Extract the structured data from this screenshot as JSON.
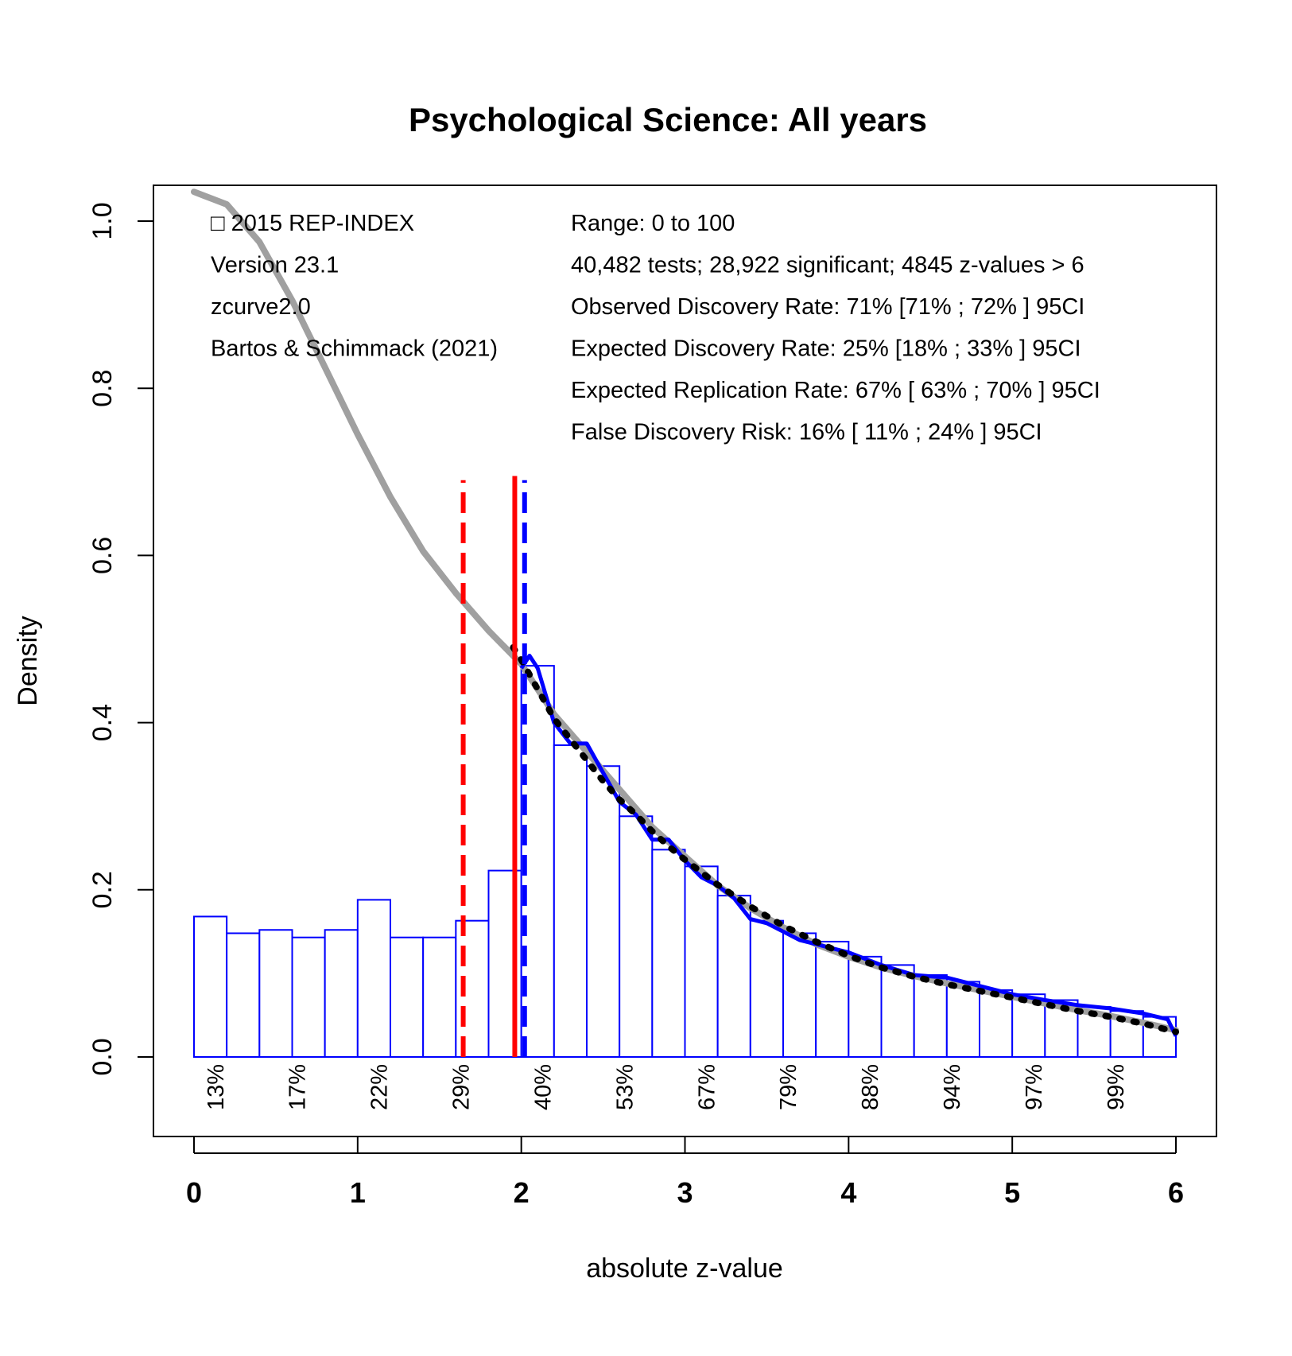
{
  "colors": {
    "bar_stroke": "#0000ff",
    "model_curve": "#a0a0a0",
    "observed_curve": "#0000ff",
    "fit_dots": "#000000",
    "red_line": "#ff0000",
    "blue_line": "#0000ff"
  },
  "chart_data": {
    "type": "bar",
    "title": "Psychological Science: All years",
    "xlabel": "absolute z-value",
    "ylabel": "Density",
    "xlim": [
      -0.05,
      6.25
    ],
    "ylim": [
      -0.095,
      1.04
    ],
    "xticks": [
      "0",
      "1",
      "2",
      "3",
      "4",
      "5",
      "6"
    ],
    "yticks": [
      "0.0",
      "0.2",
      "0.4",
      "0.6",
      "0.8",
      "1.0"
    ],
    "grid": false,
    "bin_width": 0.2,
    "bin_starts": [
      0.0,
      0.2,
      0.4,
      0.6,
      0.8,
      1.0,
      1.2,
      1.4,
      1.6,
      1.8,
      2.0,
      2.2,
      2.4,
      2.6,
      2.8,
      3.0,
      3.2,
      3.4,
      3.6,
      3.8,
      4.0,
      4.2,
      4.4,
      4.6,
      4.8,
      5.0,
      5.2,
      5.4,
      5.6,
      5.8
    ],
    "densities": [
      0.168,
      0.148,
      0.152,
      0.143,
      0.152,
      0.188,
      0.143,
      0.143,
      0.163,
      0.223,
      0.468,
      0.373,
      0.348,
      0.288,
      0.248,
      0.228,
      0.193,
      0.163,
      0.148,
      0.138,
      0.12,
      0.11,
      0.098,
      0.09,
      0.08,
      0.075,
      0.068,
      0.06,
      0.055,
      0.048
    ],
    "power_labels": [
      {
        "x": 0.13,
        "label": "13%"
      },
      {
        "x": 0.63,
        "label": "17%"
      },
      {
        "x": 1.13,
        "label": "22%"
      },
      {
        "x": 1.63,
        "label": "29%"
      },
      {
        "x": 2.13,
        "label": "40%"
      },
      {
        "x": 2.63,
        "label": "53%"
      },
      {
        "x": 3.13,
        "label": "67%"
      },
      {
        "x": 3.63,
        "label": "79%"
      },
      {
        "x": 4.13,
        "label": "88%"
      },
      {
        "x": 4.63,
        "label": "94%"
      },
      {
        "x": 5.13,
        "label": "97%"
      },
      {
        "x": 5.63,
        "label": "99%"
      }
    ],
    "model_curve": {
      "name": "",
      "x": [
        0.0,
        0.2,
        0.4,
        0.6,
        0.8,
        1.0,
        1.2,
        1.4,
        1.6,
        1.8,
        2.0,
        2.2,
        2.4,
        2.6,
        2.8,
        3.0,
        3.2,
        3.4,
        3.6,
        3.8,
        4.0,
        4.2,
        4.4,
        4.6,
        4.8,
        5.0,
        5.2,
        5.4,
        5.6,
        5.8,
        6.0
      ],
      "y": [
        1.035,
        1.02,
        0.975,
        0.905,
        0.825,
        0.745,
        0.67,
        0.605,
        0.555,
        0.51,
        0.47,
        0.41,
        0.365,
        0.32,
        0.275,
        0.24,
        0.205,
        0.178,
        0.155,
        0.135,
        0.12,
        0.107,
        0.097,
        0.088,
        0.08,
        0.072,
        0.064,
        0.056,
        0.049,
        0.041,
        0.032
      ]
    },
    "observed_density": {
      "name": "",
      "x": [
        2.0,
        2.05,
        2.1,
        2.2,
        2.3,
        2.4,
        2.5,
        2.6,
        2.7,
        2.8,
        2.9,
        3.0,
        3.1,
        3.2,
        3.3,
        3.4,
        3.5,
        3.6,
        3.7,
        3.8,
        3.9,
        4.0,
        4.2,
        4.4,
        4.6,
        4.8,
        5.0,
        5.2,
        5.4,
        5.6,
        5.8,
        5.95,
        6.0
      ],
      "y": [
        0.465,
        0.48,
        0.465,
        0.4,
        0.375,
        0.375,
        0.34,
        0.305,
        0.29,
        0.26,
        0.26,
        0.235,
        0.215,
        0.205,
        0.19,
        0.165,
        0.16,
        0.15,
        0.14,
        0.135,
        0.13,
        0.125,
        0.11,
        0.098,
        0.095,
        0.085,
        0.075,
        0.068,
        0.062,
        0.058,
        0.052,
        0.045,
        0.025
      ]
    },
    "fit_curve": {
      "name": "",
      "x": [
        1.95,
        2.0,
        2.1,
        2.2,
        2.3,
        2.4,
        2.5,
        2.6,
        2.7,
        2.8,
        2.9,
        3.0,
        3.2,
        3.4,
        3.6,
        3.8,
        4.0,
        4.2,
        4.4,
        4.6,
        4.8,
        5.0,
        5.2,
        5.4,
        5.6,
        5.8,
        6.0
      ],
      "y": [
        0.49,
        0.475,
        0.44,
        0.405,
        0.38,
        0.355,
        0.33,
        0.308,
        0.29,
        0.27,
        0.252,
        0.236,
        0.206,
        0.18,
        0.157,
        0.138,
        0.121,
        0.107,
        0.096,
        0.087,
        0.079,
        0.071,
        0.063,
        0.055,
        0.048,
        0.04,
        0.03
      ]
    },
    "vlines": [
      {
        "x": 1.645,
        "color": "#ff0000",
        "style": "dashed",
        "y_top": 0.69
      },
      {
        "x": 1.96,
        "color": "#ff0000",
        "style": "solid",
        "y_top": 0.695
      },
      {
        "x": 2.02,
        "color": "#0000ff",
        "style": "dashed",
        "y_top": 0.69
      }
    ],
    "annotations_left": [
      "□ 2015 REP-INDEX",
      "Version 23.1",
      "zcurve2.0",
      "Bartos & Schimmack (2021)"
    ],
    "annotations_right": [
      "Range: 0 to 100",
      "40,482 tests; 28,922 significant; 4845 z-values > 6",
      "Observed Discovery Rate: 71% [71% ; 72% ] 95CI",
      "Expected Discovery Rate: 25% [18% ; 33% ] 95CI",
      "Expected Replication Rate: 67% [ 63% ; 70% ] 95CI",
      "False Discovery Risk: 16% [ 11% ; 24% ] 95CI"
    ]
  }
}
